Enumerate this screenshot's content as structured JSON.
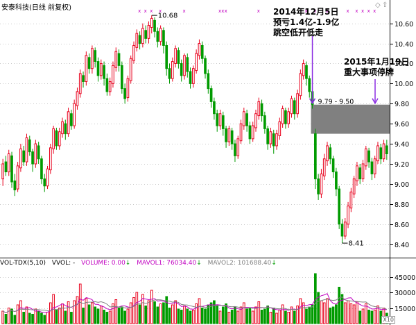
{
  "header": {
    "title": "安泰科技(日线 前复权)"
  },
  "annotations": {
    "dec5_line1": "2014年12月5日",
    "dec5_line2": "预亏1.4亿-1.9亿",
    "dec5_line3": "跳空低开低走",
    "jan19_line1": "2015年1月19日",
    "jan19_line2": "重大事项停牌",
    "gap_label": "9.79 - 9.50",
    "high_label": "10.68",
    "low_label": "8.41"
  },
  "volume_header": {
    "indicator": "VOL-TDX(5,10)",
    "vvol": "VVOL: -",
    "volume": "VOLUME: 0.00",
    "mavol1": "MAVOL1: 76034.40",
    "mavol2": "MAVOL2: 101688.40"
  },
  "controls": {
    "x10": "X10"
  },
  "colors": {
    "up": "#e8001c",
    "down": "#009b00",
    "gap": "#808080",
    "arrow": "#8a2be2",
    "grid": "#c8c8c8",
    "mavol1": "#c000c0",
    "mavol2": "#808080"
  },
  "chart_data": [
    {
      "type": "candlestick",
      "title": "安泰科技(日线 前复权)",
      "ylim": [
        8.3,
        10.75
      ],
      "y_ticks": [
        8.4,
        8.6,
        8.8,
        9.0,
        9.2,
        9.4,
        9.6,
        9.8,
        10.0,
        10.2,
        10.4,
        10.6
      ],
      "high": 10.68,
      "low": 8.41,
      "gap": [
        9.5,
        9.79
      ],
      "candles": [
        [
          9.05,
          9.2,
          8.98,
          9.25
        ],
        [
          9.22,
          9.12,
          9.08,
          9.28
        ],
        [
          9.12,
          9.3,
          9.08,
          9.34
        ],
        [
          9.28,
          9.02,
          8.96,
          9.32
        ],
        [
          9.03,
          8.94,
          8.88,
          9.1
        ],
        [
          8.95,
          9.18,
          8.92,
          9.22
        ],
        [
          9.16,
          9.35,
          9.12,
          9.4
        ],
        [
          9.33,
          9.22,
          9.18,
          9.38
        ],
        [
          9.22,
          9.46,
          9.18,
          9.5
        ],
        [
          9.44,
          9.32,
          9.28,
          9.48
        ],
        [
          9.32,
          9.2,
          9.12,
          9.35
        ],
        [
          9.2,
          9.4,
          9.16,
          9.44
        ],
        [
          9.38,
          9.25,
          9.2,
          9.42
        ],
        [
          9.25,
          9.05,
          9.0,
          9.28
        ],
        [
          9.05,
          8.98,
          8.92,
          9.1
        ],
        [
          8.98,
          9.15,
          8.95,
          9.18
        ],
        [
          9.14,
          9.36,
          9.1,
          9.4
        ],
        [
          9.35,
          9.55,
          9.3,
          9.58
        ],
        [
          9.53,
          9.38,
          9.34,
          9.56
        ],
        [
          9.38,
          9.52,
          9.34,
          9.56
        ],
        [
          9.5,
          9.62,
          9.46,
          9.66
        ],
        [
          9.6,
          9.5,
          9.44,
          9.64
        ],
        [
          9.5,
          9.72,
          9.47,
          9.76
        ],
        [
          9.7,
          9.58,
          9.54,
          9.74
        ],
        [
          9.58,
          9.8,
          9.55,
          9.84
        ],
        [
          9.78,
          9.92,
          9.74,
          9.96
        ],
        [
          9.9,
          10.1,
          9.86,
          10.14
        ],
        [
          10.08,
          10.02,
          9.96,
          10.12
        ],
        [
          10.02,
          10.28,
          9.98,
          10.32
        ],
        [
          10.26,
          10.15,
          10.1,
          10.3
        ],
        [
          10.15,
          10.35,
          10.1,
          10.38
        ],
        [
          10.33,
          10.22,
          10.16,
          10.36
        ],
        [
          10.22,
          10.08,
          10.02,
          10.26
        ],
        [
          10.08,
          10.2,
          10.04,
          10.24
        ],
        [
          10.18,
          10.05,
          9.98,
          10.22
        ],
        [
          10.05,
          9.92,
          9.88,
          10.1
        ],
        [
          9.92,
          10.02,
          9.88,
          10.06
        ],
        [
          10.0,
          10.18,
          9.96,
          10.22
        ],
        [
          10.16,
          10.32,
          10.12,
          10.36
        ],
        [
          10.3,
          10.18,
          10.12,
          10.34
        ],
        [
          10.18,
          9.95,
          9.9,
          10.22
        ],
        [
          9.95,
          9.85,
          9.8,
          10.0
        ],
        [
          9.86,
          10.05,
          9.82,
          10.08
        ],
        [
          10.03,
          10.25,
          10.0,
          10.28
        ],
        [
          10.23,
          10.38,
          10.2,
          10.42
        ],
        [
          10.36,
          10.5,
          10.32,
          10.54
        ],
        [
          10.48,
          10.4,
          10.34,
          10.52
        ],
        [
          10.4,
          10.55,
          10.36,
          10.6
        ],
        [
          10.53,
          10.45,
          10.4,
          10.58
        ],
        [
          10.45,
          10.58,
          10.4,
          10.62
        ],
        [
          10.56,
          10.65,
          10.5,
          10.68
        ],
        [
          10.63,
          10.52,
          10.46,
          10.66
        ],
        [
          10.52,
          10.42,
          10.36,
          10.56
        ],
        [
          10.42,
          10.55,
          10.38,
          10.58
        ],
        [
          10.53,
          10.38,
          10.3,
          10.56
        ],
        [
          10.38,
          10.15,
          10.08,
          10.42
        ],
        [
          10.15,
          10.05,
          10.0,
          10.2
        ],
        [
          10.05,
          10.22,
          10.02,
          10.26
        ],
        [
          10.2,
          10.35,
          10.16,
          10.38
        ],
        [
          10.33,
          10.2,
          10.15,
          10.36
        ],
        [
          10.2,
          10.08,
          10.02,
          10.24
        ],
        [
          10.08,
          10.28,
          10.04,
          10.3
        ],
        [
          10.26,
          10.12,
          10.06,
          10.3
        ],
        [
          10.12,
          10.0,
          9.95,
          10.16
        ],
        [
          10.0,
          10.15,
          9.96,
          10.18
        ],
        [
          10.13,
          10.3,
          10.1,
          10.34
        ],
        [
          10.28,
          10.4,
          10.24,
          10.44
        ],
        [
          10.38,
          10.25,
          10.2,
          10.42
        ],
        [
          10.25,
          10.1,
          10.05,
          10.28
        ],
        [
          10.1,
          9.95,
          9.9,
          10.14
        ],
        [
          9.95,
          9.82,
          9.76,
          9.98
        ],
        [
          9.82,
          9.7,
          9.64,
          9.86
        ],
        [
          9.7,
          9.58,
          9.52,
          9.74
        ],
        [
          9.58,
          9.7,
          9.54,
          9.74
        ],
        [
          9.68,
          9.55,
          9.48,
          9.72
        ],
        [
          9.55,
          9.42,
          9.36,
          9.58
        ],
        [
          9.42,
          9.55,
          9.38,
          9.58
        ],
        [
          9.53,
          9.4,
          9.34,
          9.56
        ],
        [
          9.4,
          9.28,
          9.22,
          9.44
        ],
        [
          9.28,
          9.45,
          9.25,
          9.48
        ],
        [
          9.43,
          9.6,
          9.4,
          9.64
        ],
        [
          9.58,
          9.72,
          9.54,
          9.76
        ],
        [
          9.7,
          9.58,
          9.52,
          9.74
        ],
        [
          9.58,
          9.45,
          9.4,
          9.62
        ],
        [
          9.45,
          9.58,
          9.42,
          9.62
        ],
        [
          9.56,
          9.7,
          9.52,
          9.74
        ],
        [
          9.68,
          9.82,
          9.64,
          9.86
        ],
        [
          9.8,
          9.68,
          9.62,
          9.84
        ],
        [
          9.68,
          9.55,
          9.5,
          9.72
        ],
        [
          9.55,
          9.4,
          9.34,
          9.58
        ],
        [
          9.4,
          9.52,
          9.36,
          9.56
        ],
        [
          9.5,
          9.38,
          9.3,
          9.54
        ],
        [
          9.38,
          9.5,
          9.34,
          9.54
        ],
        [
          9.48,
          9.62,
          9.44,
          9.66
        ],
        [
          9.6,
          9.75,
          9.56,
          9.78
        ],
        [
          9.73,
          9.6,
          9.55,
          9.76
        ],
        [
          9.6,
          9.72,
          9.56,
          9.76
        ],
        [
          9.7,
          9.85,
          9.66,
          9.88
        ],
        [
          9.83,
          9.7,
          9.64,
          9.86
        ],
        [
          9.7,
          9.9,
          9.66,
          9.94
        ],
        [
          9.88,
          10.1,
          9.84,
          10.14
        ],
        [
          10.08,
          10.2,
          10.04,
          10.24
        ],
        [
          10.18,
          10.05,
          9.98,
          10.22
        ],
        [
          10.05,
          9.92,
          9.86,
          10.08
        ],
        [
          9.92,
          9.79,
          9.75,
          9.96
        ],
        [
          9.5,
          9.05,
          8.95,
          9.55
        ],
        [
          9.05,
          8.9,
          8.84,
          9.1
        ],
        [
          8.9,
          9.1,
          8.86,
          9.15
        ],
        [
          9.08,
          9.25,
          9.04,
          9.3
        ],
        [
          9.23,
          9.38,
          9.18,
          9.42
        ],
        [
          9.36,
          9.25,
          9.2,
          9.4
        ],
        [
          9.25,
          9.12,
          9.06,
          9.28
        ],
        [
          9.12,
          8.95,
          8.88,
          9.16
        ],
        [
          8.95,
          8.6,
          8.55,
          8.98
        ],
        [
          8.6,
          8.48,
          8.41,
          8.65
        ],
        [
          8.48,
          8.62,
          8.45,
          8.66
        ],
        [
          8.6,
          8.78,
          8.56,
          8.82
        ],
        [
          8.76,
          8.92,
          8.72,
          8.96
        ],
        [
          8.9,
          9.05,
          8.86,
          9.08
        ],
        [
          9.03,
          9.18,
          8.98,
          9.22
        ],
        [
          9.16,
          9.05,
          9.0,
          9.2
        ],
        [
          9.05,
          9.2,
          9.02,
          9.24
        ],
        [
          9.18,
          9.35,
          9.14,
          9.38
        ],
        [
          9.33,
          9.22,
          9.16,
          9.36
        ],
        [
          9.22,
          9.1,
          9.04,
          9.26
        ],
        [
          9.1,
          9.25,
          9.06,
          9.28
        ],
        [
          9.23,
          9.38,
          9.2,
          9.42
        ],
        [
          9.36,
          9.25,
          9.2,
          9.4
        ],
        [
          9.25,
          9.4,
          9.22,
          9.44
        ],
        [
          9.38,
          9.3,
          9.24,
          9.44
        ]
      ]
    },
    {
      "type": "bar",
      "title": "VOL-TDX(5,10)",
      "y_ticks": [
        15000,
        30000,
        45000
      ],
      "ylim": [
        0,
        52000
      ],
      "volumes": [
        12000,
        9000,
        15000,
        14000,
        8000,
        18000,
        22000,
        11000,
        16000,
        10000,
        9000,
        14000,
        12000,
        10000,
        8000,
        11000,
        20000,
        28000,
        13000,
        15000,
        19000,
        12000,
        21000,
        11000,
        22000,
        26000,
        38000,
        15000,
        24000,
        18000,
        20000,
        16000,
        14000,
        17000,
        13000,
        11000,
        12000,
        19000,
        23000,
        15000,
        16000,
        12000,
        14000,
        20000,
        25000,
        30000,
        18000,
        28000,
        17000,
        22000,
        32000,
        21000,
        16000,
        19000,
        20000,
        26000,
        15000,
        18000,
        22000,
        14000,
        13000,
        17000,
        14000,
        12000,
        13000,
        19000,
        24000,
        15000,
        14000,
        18000,
        20000,
        22000,
        17000,
        12000,
        16000,
        19000,
        11000,
        13000,
        16000,
        12000,
        16000,
        20000,
        14000,
        15000,
        12000,
        16000,
        21000,
        13000,
        14000,
        17000,
        11000,
        15000,
        10000,
        13000,
        18000,
        12000,
        11000,
        16000,
        12000,
        17000,
        24000,
        20000,
        14000,
        16000,
        18000,
        48000,
        30000,
        22000,
        20000,
        24000,
        15000,
        16000,
        18000,
        35000,
        28000,
        20000,
        22000,
        19000,
        18000,
        21000,
        12000,
        14000,
        19000,
        13000,
        12000,
        13000,
        17000,
        12000,
        15000,
        10000
      ],
      "mavol1": 76034.4,
      "mavol2": 101688.4
    }
  ]
}
